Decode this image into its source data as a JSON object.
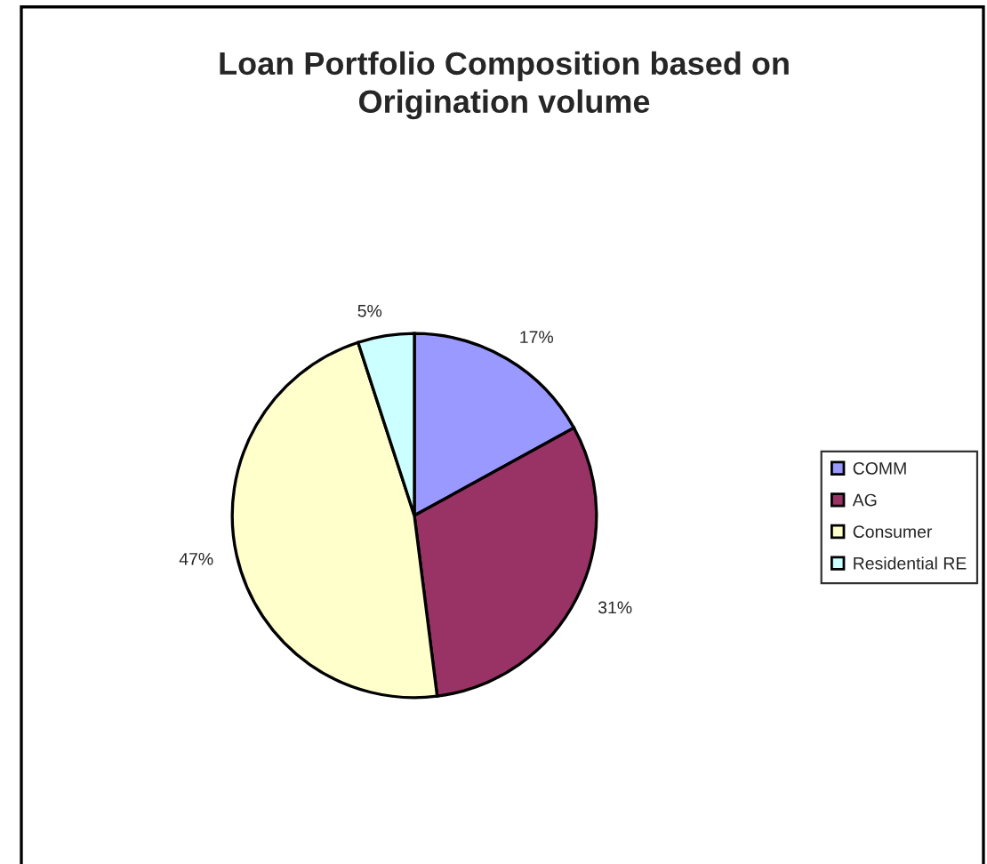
{
  "chart_data": {
    "type": "pie",
    "title": "Loan Portfolio Composition based on\nOrigination volume",
    "categories": [
      "COMM",
      "AG",
      "Consumer",
      "Residential RE"
    ],
    "values": [
      17,
      31,
      47,
      5
    ],
    "colors": [
      "#9999ff",
      "#993366",
      "#ffffcc",
      "#ccffff"
    ],
    "value_labels": [
      "17%",
      "31%",
      "47%",
      "5%"
    ],
    "legend": "right"
  }
}
